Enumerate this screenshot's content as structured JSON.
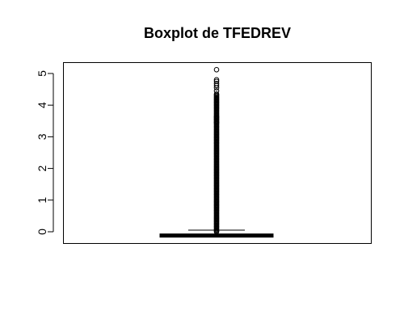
{
  "chart_data": {
    "type": "boxplot",
    "title": "Boxplot de TFEDREV",
    "xlabel": "",
    "ylabel": "",
    "ylim": [
      -0.35,
      5.3
    ],
    "y_ticks": [
      0,
      1,
      2,
      3,
      4,
      5
    ],
    "box": {
      "min": -0.12,
      "q1": -0.12,
      "median": -0.12,
      "q3": -0.12,
      "upper_whisker": 0.05
    },
    "outliers": {
      "dense_range": [
        0.0,
        4.35
      ],
      "sparse_points": [
        3.45,
        3.55,
        3.62,
        4.45,
        4.55,
        4.62,
        4.68,
        4.75,
        4.8,
        5.12
      ]
    },
    "colors": {
      "axis": "#000000",
      "box": "#000000",
      "background": "#ffffff"
    }
  }
}
